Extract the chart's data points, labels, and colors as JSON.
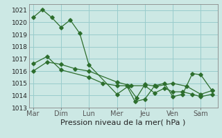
{
  "bg_color": "#cce8e4",
  "grid_color": "#99cccc",
  "line_color": "#2d6e2d",
  "xlabel": "Pression niveau de la mer( hPa )",
  "ylim": [
    1013,
    1021.5
  ],
  "yticks": [
    1013,
    1014,
    1015,
    1016,
    1017,
    1018,
    1019,
    1020,
    1021
  ],
  "x_labels": [
    "Mar",
    "Dim",
    "Lun",
    "Mer",
    "Jeu",
    "Ven",
    "Sam"
  ],
  "x_sep": [
    0,
    1,
    2,
    3,
    4,
    5,
    6
  ],
  "line1_x": [
    0.0,
    0.33,
    0.67,
    1.0,
    1.33,
    1.67,
    2.0,
    3.0,
    3.4,
    3.7,
    4.0,
    4.4,
    5.0,
    5.5,
    6.0,
    6.4
  ],
  "line1_y": [
    1020.4,
    1021.05,
    1020.4,
    1019.6,
    1020.2,
    1019.1,
    1016.5,
    1014.1,
    1014.75,
    1013.8,
    1014.9,
    1014.75,
    1015.0,
    1014.75,
    1014.1,
    1014.4
  ],
  "line2_x": [
    0.0,
    0.5,
    1.0,
    1.5,
    2.0,
    3.0,
    3.5,
    4.0,
    4.35,
    4.7,
    5.0,
    5.35,
    5.7,
    6.0,
    6.4
  ],
  "line2_y": [
    1016.0,
    1016.75,
    1016.55,
    1016.2,
    1016.0,
    1015.1,
    1014.8,
    1014.8,
    1014.2,
    1014.6,
    1014.3,
    1014.3,
    1014.1,
    1013.9,
    1014.1
  ],
  "line3_x": [
    0.0,
    0.5,
    1.0,
    2.0,
    2.5,
    3.0,
    3.35,
    3.65,
    4.0,
    4.35,
    4.7,
    5.0,
    5.35,
    5.7,
    6.0,
    6.4
  ],
  "line3_y": [
    1016.6,
    1017.2,
    1016.1,
    1015.5,
    1015.0,
    1014.8,
    1014.8,
    1013.5,
    1013.7,
    1014.8,
    1015.0,
    1013.9,
    1014.1,
    1015.8,
    1015.7,
    1014.4
  ],
  "xlim": [
    -0.15,
    6.6
  ],
  "ytick_fontsize": 6.5,
  "xtick_fontsize": 7.0,
  "xlabel_fontsize": 8.0
}
